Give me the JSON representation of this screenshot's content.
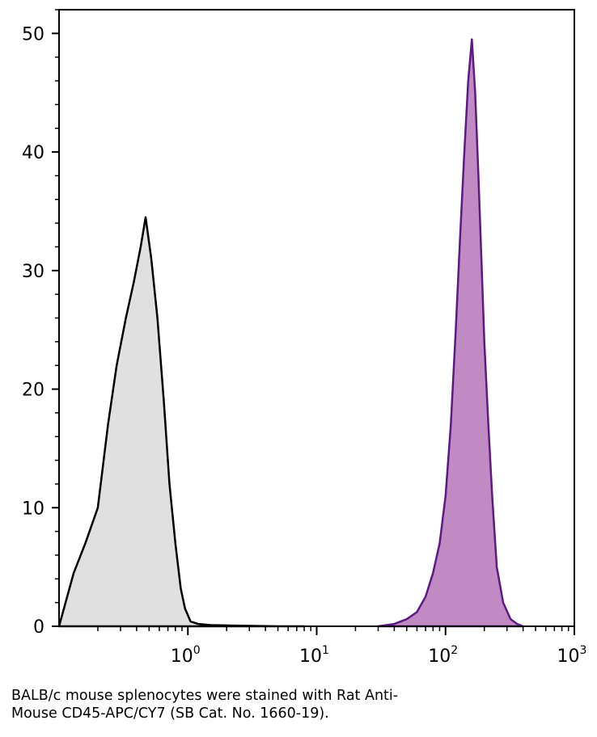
{
  "chart_data": {
    "type": "area",
    "x_scale": "log",
    "xlim": [
      0.1,
      1000
    ],
    "ylim": [
      0,
      52
    ],
    "y_ticks": [
      0,
      10,
      20,
      30,
      40,
      50
    ],
    "y_tick_labels": [
      "0",
      "10",
      "20",
      "30",
      "40",
      "50"
    ],
    "x_ticks": [
      1,
      10,
      100,
      1000
    ],
    "x_tick_labels": [
      {
        "base": "10",
        "exp": "0"
      },
      {
        "base": "10",
        "exp": "1"
      },
      {
        "base": "10",
        "exp": "2"
      },
      {
        "base": "10",
        "exp": "3"
      }
    ],
    "grid": false,
    "legend": "none",
    "series": [
      {
        "fill": "#e0e0e0",
        "stroke": "#000000",
        "x": [
          0.1,
          0.13,
          0.16,
          0.2,
          0.24,
          0.28,
          0.33,
          0.38,
          0.43,
          0.47,
          0.52,
          0.58,
          0.65,
          0.72,
          0.8,
          0.88,
          0.95,
          1.05,
          1.2,
          1.5,
          2.5,
          5,
          8
        ],
        "y": [
          0,
          4.5,
          7,
          10,
          17,
          22,
          26,
          29,
          32,
          34.5,
          31,
          26,
          19,
          12,
          7,
          3.2,
          1.5,
          0.4,
          0.2,
          0.1,
          0.05,
          0,
          0
        ]
      },
      {
        "fill": "#c28ac2",
        "stroke": "#5c1a86",
        "x": [
          30,
          40,
          50,
          60,
          70,
          80,
          90,
          100,
          110,
          120,
          130,
          140,
          150,
          160,
          170,
          180,
          190,
          200,
          215,
          230,
          250,
          280,
          320,
          360,
          400
        ],
        "y": [
          0,
          0.2,
          0.6,
          1.2,
          2.5,
          4.5,
          7,
          11,
          17,
          25,
          33,
          40,
          46,
          49.5,
          45,
          38,
          31,
          24,
          17,
          11,
          5,
          2,
          0.6,
          0.2,
          0
        ]
      }
    ]
  },
  "caption": {
    "line1": "BALB/c mouse splenocytes were stained with Rat Anti-",
    "line2": "Mouse CD45-APC/CY7 (SB Cat. No. 1660-19)."
  }
}
